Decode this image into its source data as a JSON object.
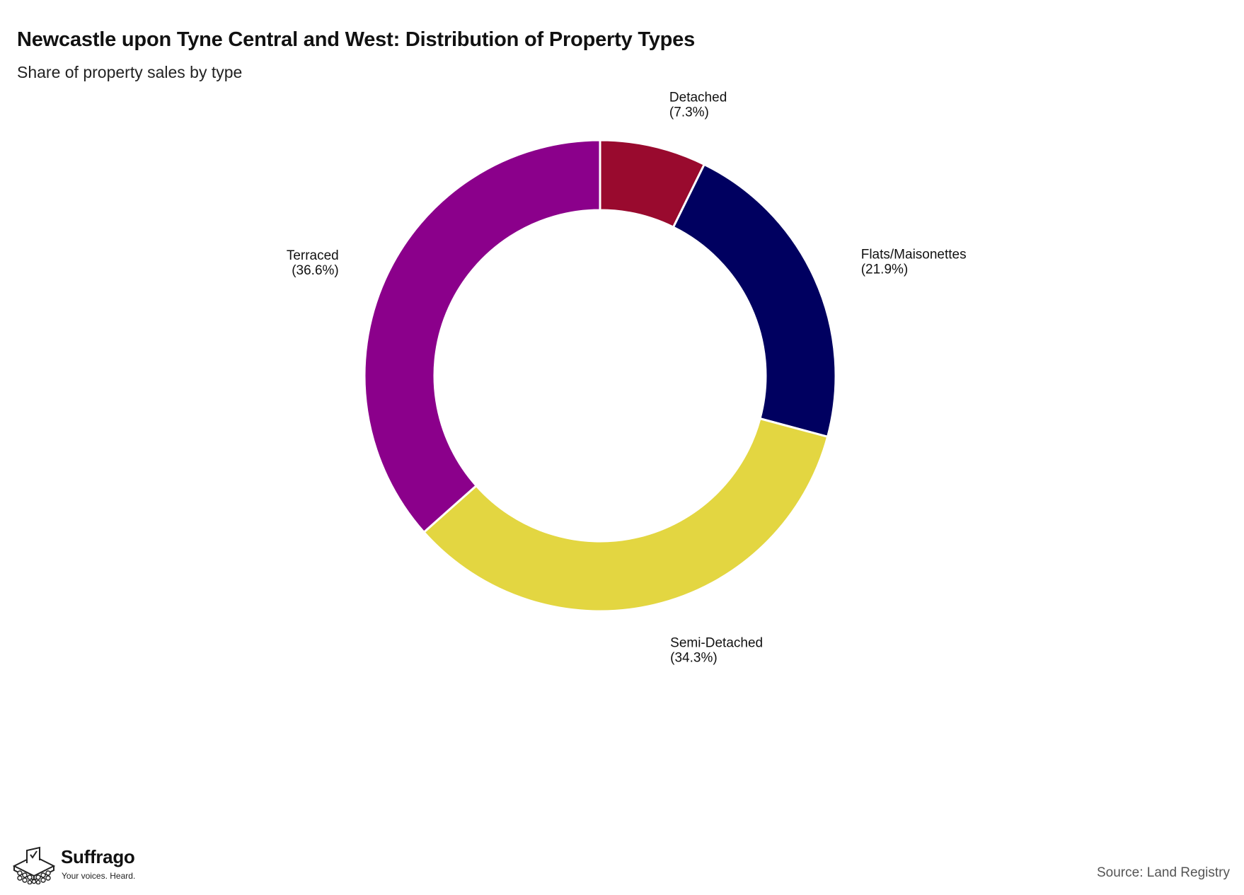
{
  "header": {
    "title": "Newcastle upon Tyne Central and West: Distribution of Property Types",
    "subtitle": "Share of property sales by type"
  },
  "chart_data": {
    "type": "pie",
    "variant": "donut",
    "title": "Newcastle upon Tyne Central and West: Distribution of Property Types",
    "subtitle": "Share of property sales by type",
    "unit": "%",
    "start_angle": "12 o'clock",
    "direction": "clockwise",
    "legend": "none (direct labels)",
    "slices": [
      {
        "label": "Detached",
        "value": 7.3,
        "value_label": "(7.3%)",
        "color": "#990a2e"
      },
      {
        "label": "Flats/Maisonettes",
        "value": 21.9,
        "value_label": "(21.9%)",
        "color": "#000060"
      },
      {
        "label": "Semi-Detached",
        "value": 34.3,
        "value_label": "(34.3%)",
        "color": "#e3d641"
      },
      {
        "label": "Terraced",
        "value": 36.6,
        "value_label": "(36.6%)",
        "color": "#8b008b"
      }
    ]
  },
  "footer": {
    "brand_name": "Suffrago",
    "brand_tagline": "Your voices. Heard.",
    "source": "Source: Land Registry"
  }
}
